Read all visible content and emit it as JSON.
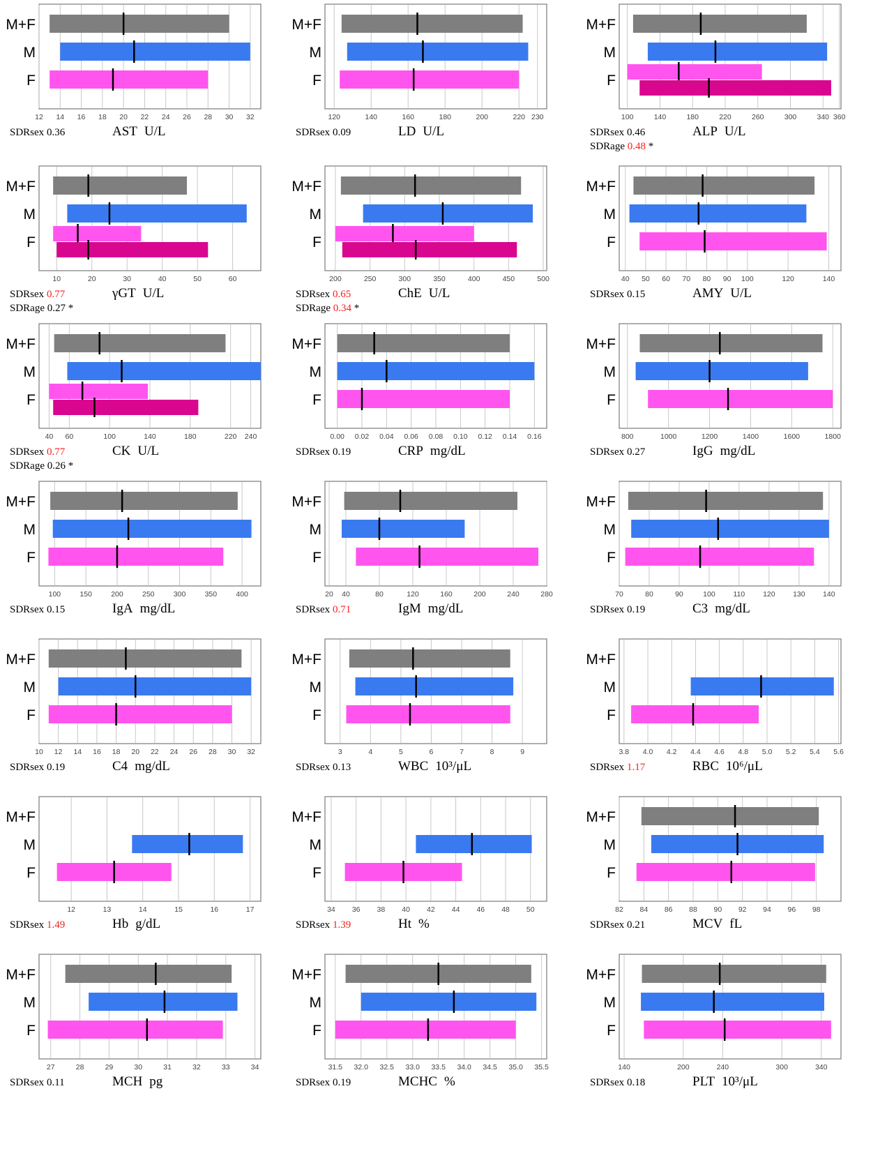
{
  "group_labels": [
    "M+F",
    "M",
    "F"
  ],
  "colors": {
    "mf": "#7f7f7f",
    "m": "#3a7af0",
    "f": "#ff55ee",
    "f_older": "#d9068f",
    "highlight": "#ff1a1a"
  },
  "chart_data": [
    {
      "type": "bar",
      "title": "AST",
      "unit": "U/L",
      "sdr_sex": "0.36",
      "sdr_sex_red": false,
      "ticks": [
        "12",
        "14",
        "16",
        "18",
        "20",
        "22",
        "24",
        "26",
        "28",
        "30",
        "32"
      ],
      "xlim": [
        12,
        33
      ],
      "bars": [
        {
          "group": "M+F",
          "low": 13,
          "high": 30,
          "median": 20
        },
        {
          "group": "M",
          "low": 14,
          "high": 32,
          "median": 21
        },
        {
          "group": "F",
          "low": 13,
          "high": 28,
          "median": 19
        }
      ]
    },
    {
      "type": "bar",
      "title": "LD",
      "unit": "U/L",
      "sdr_sex": "0.09",
      "sdr_sex_red": false,
      "ticks": [
        "120",
        "140",
        "160",
        "180",
        "200",
        "220",
        "230"
      ],
      "xlim": [
        115,
        235
      ],
      "bars": [
        {
          "group": "M+F",
          "low": 124,
          "high": 222,
          "median": 165
        },
        {
          "group": "M",
          "low": 127,
          "high": 225,
          "median": 168
        },
        {
          "group": "F",
          "low": 123,
          "high": 220,
          "median": 163
        }
      ]
    },
    {
      "type": "bar",
      "title": "ALP",
      "unit": "U/L",
      "sdr_sex": "0.46",
      "sdr_sex_red": false,
      "sdr_age": "0.48",
      "sdr_age_red": true,
      "ticks": [
        "100",
        "140",
        "180",
        "220",
        "260",
        "300",
        "340",
        "360"
      ],
      "xlim": [
        90,
        362
      ],
      "bars": [
        {
          "group": "M+F",
          "low": 107,
          "high": 320,
          "median": 190
        },
        {
          "group": "M",
          "low": 125,
          "high": 345,
          "median": 208
        },
        {
          "group": "F",
          "low": 100,
          "high": 265,
          "median": 163
        },
        {
          "group": "F",
          "low": 115,
          "high": 350,
          "median": 200,
          "older": true
        }
      ]
    },
    {
      "type": "bar",
      "title": "γGT",
      "unit": "U/L",
      "sdr_sex": "0.77",
      "sdr_sex_red": true,
      "sdr_age": "0.27",
      "sdr_age_red": false,
      "ticks": [
        "10",
        "20",
        "30",
        "40",
        "50",
        "60"
      ],
      "xlim": [
        5,
        68
      ],
      "bars": [
        {
          "group": "M+F",
          "low": 9,
          "high": 47,
          "median": 19
        },
        {
          "group": "M",
          "low": 13,
          "high": 64,
          "median": 25
        },
        {
          "group": "F",
          "low": 9,
          "high": 34,
          "median": 16
        },
        {
          "group": "F",
          "low": 10,
          "high": 53,
          "median": 19,
          "older": true
        }
      ]
    },
    {
      "type": "bar",
      "title": "ChE",
      "unit": "U/L",
      "sdr_sex": "0.65",
      "sdr_sex_red": true,
      "sdr_age": "0.34",
      "sdr_age_red": true,
      "ticks": [
        "200",
        "250",
        "300",
        "350",
        "400",
        "450",
        "500"
      ],
      "xlim": [
        185,
        505
      ],
      "bars": [
        {
          "group": "M+F",
          "low": 208,
          "high": 468,
          "median": 315
        },
        {
          "group": "M",
          "low": 240,
          "high": 485,
          "median": 355
        },
        {
          "group": "F",
          "low": 200,
          "high": 400,
          "median": 283
        },
        {
          "group": "F",
          "low": 210,
          "high": 462,
          "median": 316,
          "older": true
        }
      ]
    },
    {
      "type": "bar",
      "title": "AMY",
      "unit": "U/L",
      "sdr_sex": "0.15",
      "sdr_sex_red": false,
      "ticks": [
        "40",
        "50",
        "60",
        "70",
        "80",
        "90",
        "100",
        "120",
        "140"
      ],
      "xlim": [
        37,
        146
      ],
      "bars": [
        {
          "group": "M+F",
          "low": 44,
          "high": 133,
          "median": 78
        },
        {
          "group": "M",
          "low": 42,
          "high": 129,
          "median": 76
        },
        {
          "group": "F",
          "low": 47,
          "high": 139,
          "median": 79
        }
      ]
    },
    {
      "type": "bar",
      "title": "CK",
      "unit": "U/L",
      "sdr_sex": "0.77",
      "sdr_sex_red": true,
      "sdr_age": "0.26",
      "sdr_age_red": false,
      "ticks": [
        "40",
        "60",
        "100",
        "140",
        "180",
        "220",
        "240"
      ],
      "xlim": [
        30,
        250
      ],
      "bars": [
        {
          "group": "M+F",
          "low": 45,
          "high": 215,
          "median": 90
        },
        {
          "group": "M",
          "low": 58,
          "high": 250,
          "median": 112
        },
        {
          "group": "F",
          "low": 40,
          "high": 138,
          "median": 73
        },
        {
          "group": "F",
          "low": 44,
          "high": 188,
          "median": 85,
          "older": true
        }
      ]
    },
    {
      "type": "bar",
      "title": "CRP",
      "unit": "mg/dL",
      "sdr_sex": "0.19",
      "sdr_sex_red": false,
      "ticks": [
        "0.00",
        "0.02",
        "0.04",
        "0.06",
        "0.08",
        "0.10",
        "0.12",
        "0.14",
        "0.16"
      ],
      "xlim": [
        -0.01,
        0.17
      ],
      "bars": [
        {
          "group": "M+F",
          "low": 0,
          "high": 0.14,
          "median": 0.03
        },
        {
          "group": "M",
          "low": 0,
          "high": 0.16,
          "median": 0.04
        },
        {
          "group": "F",
          "low": 0,
          "high": 0.14,
          "median": 0.02
        }
      ]
    },
    {
      "type": "bar",
      "title": "IgG",
      "unit": "mg/dL",
      "sdr_sex": "0.27",
      "sdr_sex_red": false,
      "ticks": [
        "800",
        "1000",
        "1200",
        "1400",
        "1600",
        "1800"
      ],
      "xlim": [
        760,
        1840
      ],
      "bars": [
        {
          "group": "M+F",
          "low": 860,
          "high": 1750,
          "median": 1250
        },
        {
          "group": "M",
          "low": 840,
          "high": 1680,
          "median": 1200
        },
        {
          "group": "F",
          "low": 900,
          "high": 1800,
          "median": 1290
        }
      ]
    },
    {
      "type": "bar",
      "title": "IgA",
      "unit": "mg/dL",
      "sdr_sex": "0.15",
      "sdr_sex_red": false,
      "ticks": [
        "100",
        "150",
        "200",
        "250",
        "300",
        "350",
        "400"
      ],
      "xlim": [
        75,
        430
      ],
      "bars": [
        {
          "group": "M+F",
          "low": 93,
          "high": 393,
          "median": 208
        },
        {
          "group": "M",
          "low": 97,
          "high": 415,
          "median": 218
        },
        {
          "group": "F",
          "low": 90,
          "high": 370,
          "median": 200
        }
      ]
    },
    {
      "type": "bar",
      "title": "IgM",
      "unit": "mg/dL",
      "sdr_sex": "0.71",
      "sdr_sex_red": true,
      "ticks": [
        "20",
        "40",
        "80",
        "120",
        "160",
        "200",
        "240",
        "280"
      ],
      "xlim": [
        15,
        280
      ],
      "bars": [
        {
          "group": "M+F",
          "low": 38,
          "high": 245,
          "median": 105
        },
        {
          "group": "M",
          "low": 35,
          "high": 182,
          "median": 80
        },
        {
          "group": "F",
          "low": 52,
          "high": 270,
          "median": 128
        }
      ]
    },
    {
      "type": "bar",
      "title": "C3",
      "unit": "mg/dL",
      "sdr_sex": "0.19",
      "sdr_sex_red": false,
      "ticks": [
        "70",
        "80",
        "90",
        "100",
        "110",
        "120",
        "130",
        "140"
      ],
      "xlim": [
        70,
        144
      ],
      "bars": [
        {
          "group": "M+F",
          "low": 73,
          "high": 138,
          "median": 99
        },
        {
          "group": "M",
          "low": 74,
          "high": 140,
          "median": 103
        },
        {
          "group": "F",
          "low": 72,
          "high": 135,
          "median": 97
        }
      ]
    },
    {
      "type": "bar",
      "title": "C4",
      "unit": "mg/dL",
      "sdr_sex": "0.19",
      "sdr_sex_red": false,
      "ticks": [
        "10",
        "12",
        "14",
        "16",
        "18",
        "20",
        "22",
        "24",
        "26",
        "28",
        "30",
        "32"
      ],
      "xlim": [
        10,
        33
      ],
      "bars": [
        {
          "group": "M+F",
          "low": 11,
          "high": 31,
          "median": 19
        },
        {
          "group": "M",
          "low": 12,
          "high": 32,
          "median": 20
        },
        {
          "group": "F",
          "low": 11,
          "high": 30,
          "median": 18
        }
      ]
    },
    {
      "type": "bar",
      "title": "WBC",
      "unit": "10³/μL",
      "sdr_sex": "0.13",
      "sdr_sex_red": false,
      "ticks": [
        "3",
        "4",
        "5",
        "6",
        "7",
        "8",
        "9"
      ],
      "xlim": [
        2.5,
        9.8
      ],
      "bars": [
        {
          "group": "M+F",
          "low": 3.3,
          "high": 8.6,
          "median": 5.4
        },
        {
          "group": "M",
          "low": 3.5,
          "high": 8.7,
          "median": 5.5
        },
        {
          "group": "F",
          "low": 3.2,
          "high": 8.6,
          "median": 5.3
        }
      ]
    },
    {
      "type": "bar",
      "title": "RBC",
      "unit": "10⁶/μL",
      "sdr_sex": "1.17",
      "sdr_sex_red": true,
      "ticks": [
        "3.8",
        "4.0",
        "4.2",
        "4.4",
        "4.6",
        "4.8",
        "5.0",
        "5.2",
        "5.4",
        "5.6"
      ],
      "xlim": [
        3.76,
        5.62
      ],
      "bars": [
        {
          "group": "M",
          "low": 4.36,
          "high": 5.56,
          "median": 4.95
        },
        {
          "group": "F",
          "low": 3.86,
          "high": 4.93,
          "median": 4.38
        }
      ]
    },
    {
      "type": "bar",
      "title": "Hb",
      "unit": "g/dL",
      "sdr_sex": "1.49",
      "sdr_sex_red": true,
      "ticks": [
        "12",
        "13",
        "14",
        "15",
        "16",
        "17"
      ],
      "xlim": [
        11.1,
        17.3
      ],
      "bars": [
        {
          "group": "M",
          "low": 13.7,
          "high": 16.8,
          "median": 15.3
        },
        {
          "group": "F",
          "low": 11.6,
          "high": 14.8,
          "median": 13.2
        }
      ]
    },
    {
      "type": "bar",
      "title": "Ht",
      "unit": "%",
      "sdr_sex": "1.39",
      "sdr_sex_red": true,
      "ticks": [
        "34",
        "36",
        "38",
        "40",
        "42",
        "44",
        "46",
        "48",
        "50"
      ],
      "xlim": [
        33.5,
        51.3
      ],
      "bars": [
        {
          "group": "M",
          "low": 40.8,
          "high": 50.1,
          "median": 45.3
        },
        {
          "group": "F",
          "low": 35.1,
          "high": 44.5,
          "median": 39.8
        }
      ]
    },
    {
      "type": "bar",
      "title": "MCV",
      "unit": "fL",
      "sdr_sex": "0.21",
      "sdr_sex_red": false,
      "ticks": [
        "82",
        "84",
        "86",
        "88",
        "90",
        "92",
        "94",
        "96",
        "98"
      ],
      "xlim": [
        82,
        100
      ],
      "bars": [
        {
          "group": "M+F",
          "low": 83.8,
          "high": 98.2,
          "median": 91.4
        },
        {
          "group": "M",
          "low": 84.6,
          "high": 98.6,
          "median": 91.6
        },
        {
          "group": "F",
          "low": 83.4,
          "high": 97.9,
          "median": 91.1
        }
      ]
    },
    {
      "type": "bar",
      "title": "MCH",
      "unit": "pg",
      "sdr_sex": "0.11",
      "sdr_sex_red": false,
      "ticks": [
        "27",
        "28",
        "29",
        "30",
        "31",
        "32",
        "33",
        "34"
      ],
      "xlim": [
        26.6,
        34.2
      ],
      "bars": [
        {
          "group": "M+F",
          "low": 27.5,
          "high": 33.2,
          "median": 30.6
        },
        {
          "group": "M",
          "low": 28.3,
          "high": 33.4,
          "median": 30.9
        },
        {
          "group": "F",
          "low": 26.9,
          "high": 32.9,
          "median": 30.3
        }
      ]
    },
    {
      "type": "bar",
      "title": "MCHC",
      "unit": "%",
      "sdr_sex": "0.19",
      "sdr_sex_red": false,
      "ticks": [
        "31.5",
        "32.0",
        "32.5",
        "33.0",
        "33.5",
        "34.0",
        "34.5",
        "35.0",
        "35.5"
      ],
      "xlim": [
        31.3,
        35.6
      ],
      "bars": [
        {
          "group": "M+F",
          "low": 31.7,
          "high": 35.3,
          "median": 33.5
        },
        {
          "group": "M",
          "low": 32.0,
          "high": 35.4,
          "median": 33.8
        },
        {
          "group": "F",
          "low": 31.5,
          "high": 35.0,
          "median": 33.3
        }
      ]
    },
    {
      "type": "bar",
      "title": "PLT",
      "unit": "10³/μL",
      "sdr_sex": "0.18",
      "sdr_sex_red": false,
      "ticks": [
        "140",
        "200",
        "240",
        "300",
        "340"
      ],
      "xlim": [
        135,
        360
      ],
      "bars": [
        {
          "group": "M+F",
          "low": 158,
          "high": 345,
          "median": 237
        },
        {
          "group": "M",
          "low": 157,
          "high": 343,
          "median": 231
        },
        {
          "group": "F",
          "low": 160,
          "high": 350,
          "median": 242
        }
      ]
    }
  ]
}
